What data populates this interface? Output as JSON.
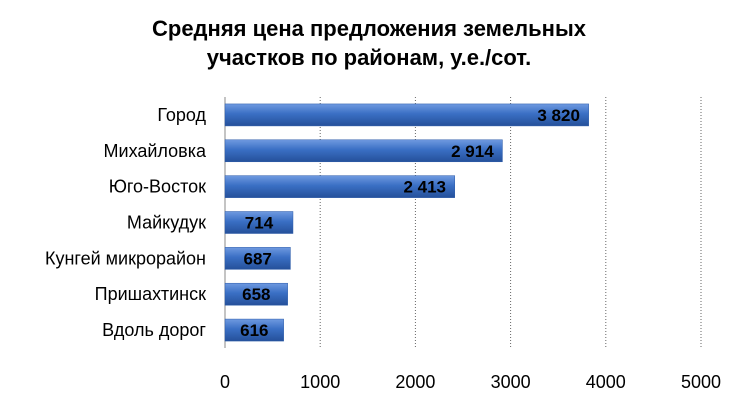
{
  "chart_data": {
    "type": "bar",
    "orientation": "horizontal",
    "title": "Средняя цена предложения земельных\nучастков по районам, у.е./сот.",
    "categories": [
      "Город",
      "Михайловка",
      "Юго-Восток",
      "Майкудук",
      "Кунгей микрорайон",
      "Пришахтинск",
      "Вдоль дорог"
    ],
    "values": [
      3820,
      2914,
      2413,
      714,
      687,
      658,
      616
    ],
    "value_labels": [
      "3 820",
      "2 914",
      "2 413",
      "714",
      "687",
      "658",
      "616"
    ],
    "xlim": [
      0,
      5000
    ],
    "x_ticks": [
      0,
      1000,
      2000,
      3000,
      4000,
      5000
    ],
    "grid": "vertical-dotted",
    "bar_color": "#3a6fc4",
    "legend": "none"
  }
}
